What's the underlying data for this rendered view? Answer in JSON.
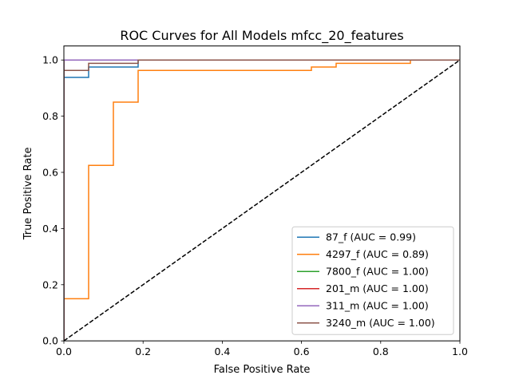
{
  "chart_data": {
    "type": "line",
    "title": "ROC Curves for All Models mfcc_20_features",
    "xlabel": "False Positive Rate",
    "ylabel": "True Positive Rate",
    "xlim": [
      0.0,
      1.0
    ],
    "ylim": [
      0.0,
      1.05
    ],
    "xticks": [
      0.0,
      0.2,
      0.4,
      0.6,
      0.8,
      1.0
    ],
    "xtick_labels": [
      "0.0",
      "0.2",
      "0.4",
      "0.6",
      "0.8",
      "1.0"
    ],
    "yticks": [
      0.0,
      0.2,
      0.4,
      0.6,
      0.8,
      1.0
    ],
    "ytick_labels": [
      "0.0",
      "0.2",
      "0.4",
      "0.6",
      "0.8",
      "1.0"
    ],
    "grid": false,
    "legend_position": "lower-right",
    "series": [
      {
        "name": "87_f (AUC = 0.99)",
        "color": "#1f77b4",
        "x": [
          0.0,
          0.0,
          0.0625,
          0.0625,
          0.1875,
          0.1875,
          1.0
        ],
        "y": [
          0.0,
          0.938,
          0.938,
          0.975,
          0.975,
          1.0,
          1.0
        ]
      },
      {
        "name": "4297_f (AUC = 0.89)",
        "color": "#ff7f0e",
        "x": [
          0.0,
          0.0,
          0.0625,
          0.0625,
          0.125,
          0.125,
          0.1875,
          0.1875,
          0.625,
          0.625,
          0.6875,
          0.6875,
          0.875,
          0.875,
          1.0
        ],
        "y": [
          0.0,
          0.15,
          0.15,
          0.625,
          0.625,
          0.85,
          0.85,
          0.963,
          0.963,
          0.975,
          0.975,
          0.988,
          0.988,
          1.0,
          1.0
        ]
      },
      {
        "name": "7800_f (AUC = 1.00)",
        "color": "#2ca02c",
        "x": [
          0.0,
          0.0,
          1.0
        ],
        "y": [
          0.0,
          1.0,
          1.0
        ]
      },
      {
        "name": "201_m (AUC = 1.00)",
        "color": "#d62728",
        "x": [
          0.0,
          0.0,
          1.0
        ],
        "y": [
          0.0,
          1.0,
          1.0
        ]
      },
      {
        "name": "311_m (AUC = 1.00)",
        "color": "#9467bd",
        "x": [
          0.0,
          0.0,
          1.0
        ],
        "y": [
          0.0,
          1.0,
          1.0
        ]
      },
      {
        "name": "3240_m (AUC = 1.00)",
        "color": "#8c564b",
        "x": [
          0.0,
          0.0,
          0.0625,
          0.0625,
          0.1875,
          0.1875,
          1.0
        ],
        "y": [
          0.0,
          0.963,
          0.963,
          0.988,
          0.988,
          1.0,
          1.0
        ]
      }
    ],
    "reference_line": {
      "style": "dashed",
      "color": "#000000",
      "x": [
        0.0,
        1.0
      ],
      "y": [
        0.0,
        1.0
      ]
    }
  }
}
